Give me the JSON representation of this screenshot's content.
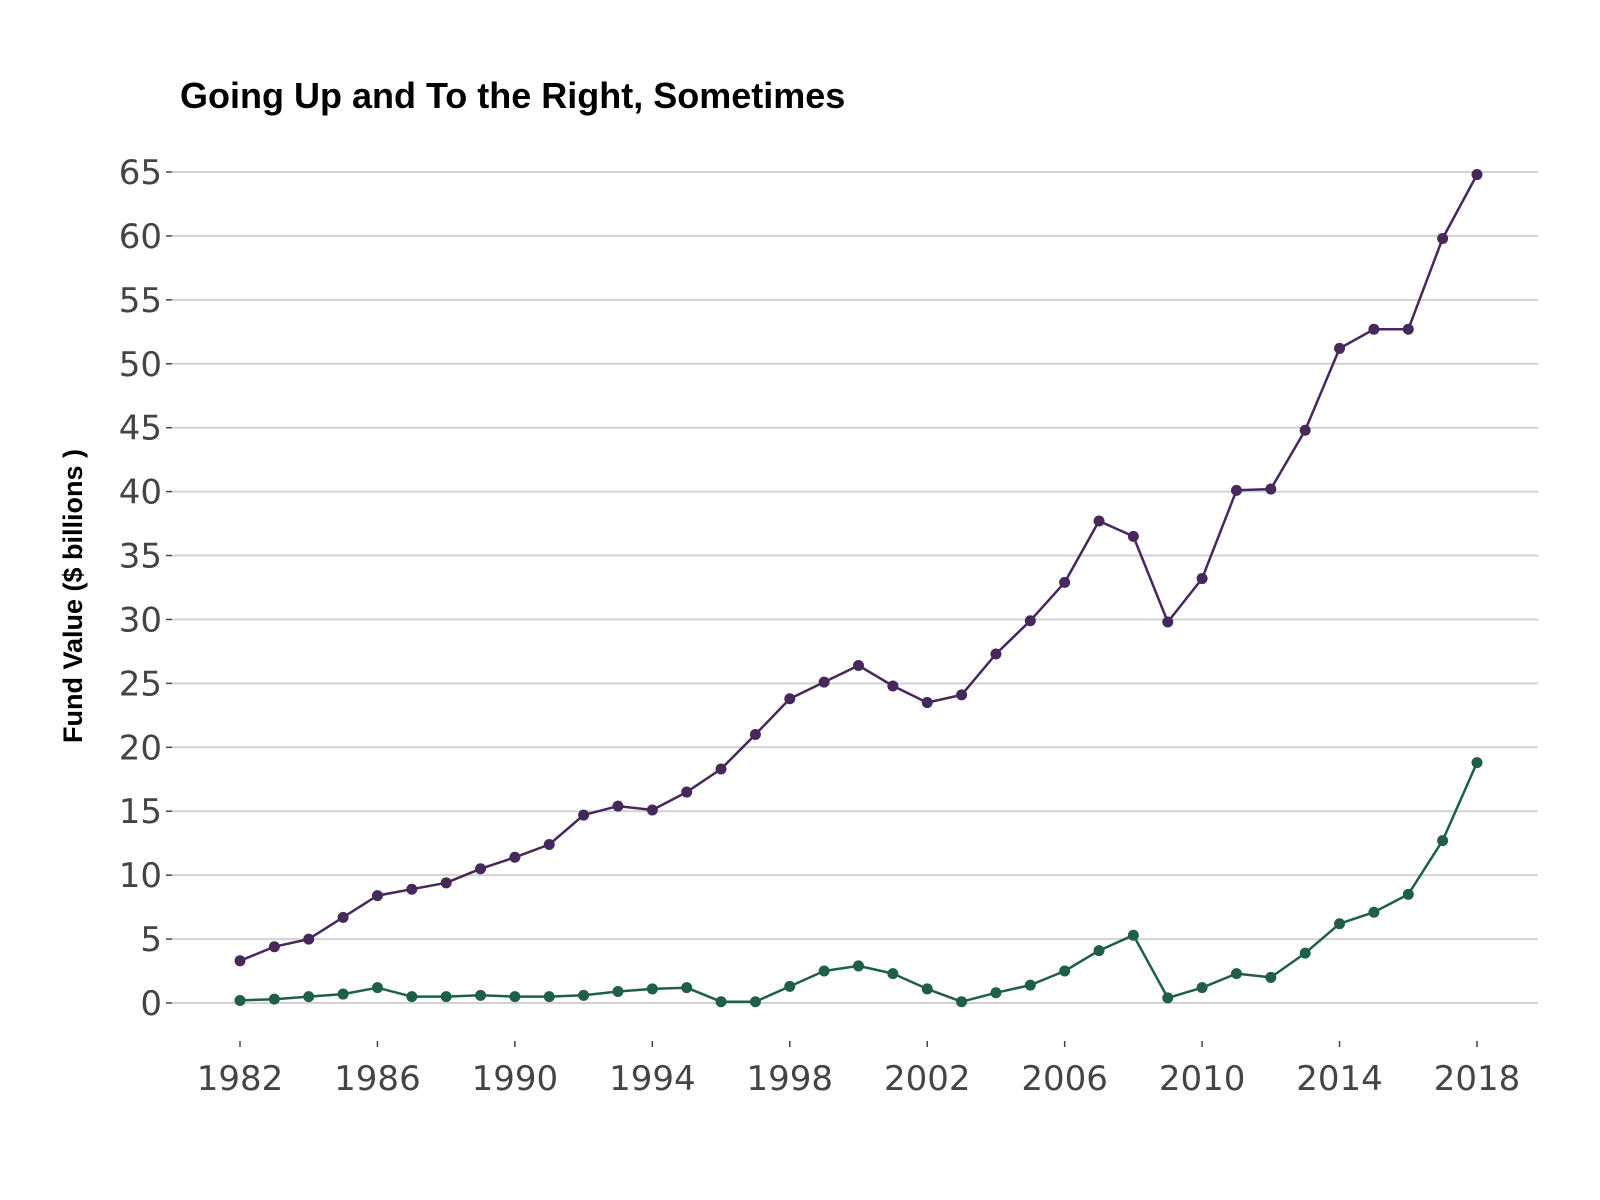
{
  "chart_data": {
    "type": "line",
    "title": "Going Up and To the Right, Sometimes",
    "xlabel": "",
    "ylabel": "Fund Value ($ billions )",
    "xlim": [
      1982,
      2018
    ],
    "ylim": [
      0,
      65
    ],
    "x_ticks": [
      "1982",
      "1986",
      "1990",
      "1994",
      "1998",
      "2002",
      "2006",
      "2010",
      "2014",
      "2018"
    ],
    "y_ticks": [
      "0",
      "5",
      "10",
      "15",
      "20",
      "25",
      "30",
      "35",
      "40",
      "45",
      "50",
      "55",
      "60",
      "65"
    ],
    "grid": "horizontal",
    "legend": "none",
    "x": [
      1982,
      1983,
      1984,
      1985,
      1986,
      1987,
      1988,
      1989,
      1990,
      1991,
      1992,
      1993,
      1994,
      1995,
      1996,
      1997,
      1998,
      1999,
      2000,
      2001,
      2002,
      2003,
      2004,
      2005,
      2006,
      2007,
      2008,
      2009,
      2010,
      2011,
      2012,
      2013,
      2014,
      2015,
      2016,
      2017,
      2018
    ],
    "series": [
      {
        "color": "#46285a",
        "values": [
          3.3,
          4.4,
          5.0,
          6.7,
          8.4,
          8.9,
          9.4,
          10.5,
          11.4,
          12.4,
          14.7,
          15.4,
          15.1,
          16.5,
          18.3,
          21.0,
          23.8,
          25.1,
          26.4,
          24.8,
          23.5,
          24.1,
          27.3,
          29.9,
          32.9,
          37.7,
          36.5,
          29.8,
          33.2,
          40.1,
          40.2,
          44.8,
          51.2,
          52.7,
          52.7,
          59.8,
          64.8
        ]
      },
      {
        "color": "#1e5f46",
        "values": [
          0.2,
          0.3,
          0.5,
          0.7,
          1.2,
          0.5,
          0.5,
          0.6,
          0.5,
          0.5,
          0.6,
          0.9,
          1.1,
          1.2,
          0.1,
          0.1,
          1.3,
          2.5,
          2.9,
          2.3,
          1.1,
          0.1,
          0.8,
          1.4,
          2.5,
          4.1,
          5.3,
          0.4,
          1.2,
          2.3,
          2.0,
          3.9,
          6.2,
          7.1,
          8.5,
          12.7,
          18.8
        ]
      }
    ]
  }
}
